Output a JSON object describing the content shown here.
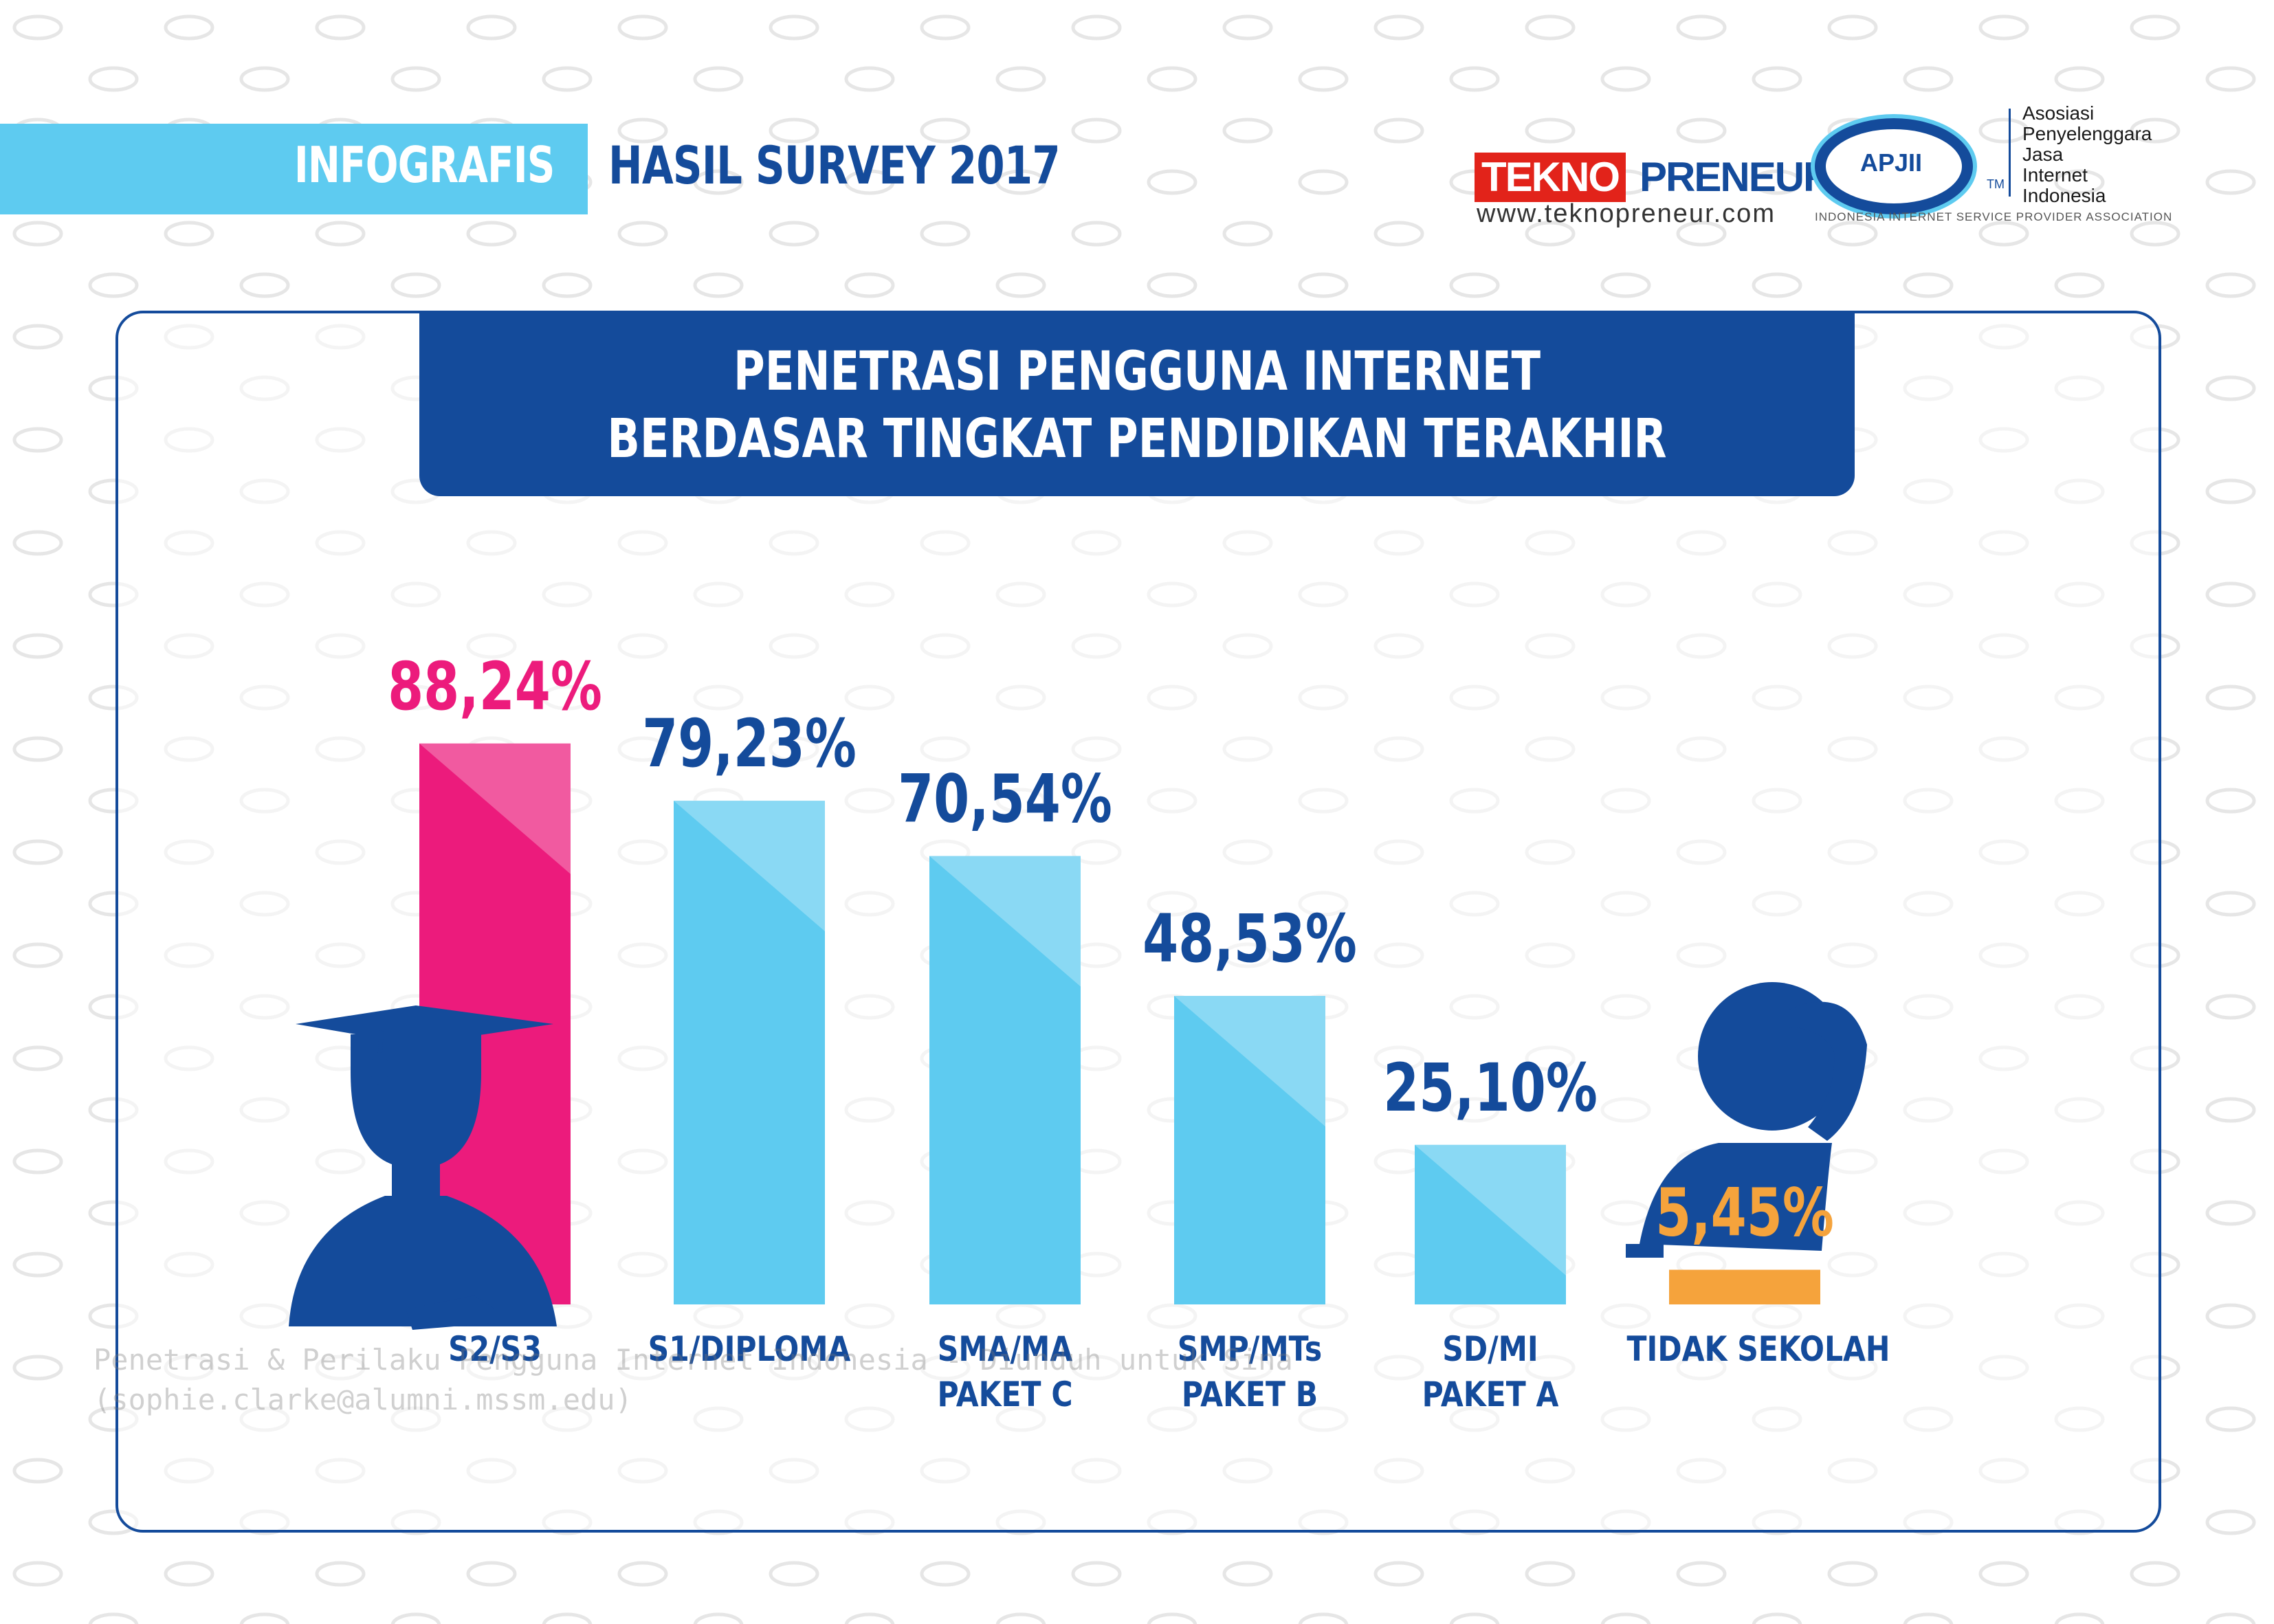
{
  "header": {
    "band_text": "INFOGRAFIS",
    "title": "HASIL SURVEY 2017"
  },
  "logos": {
    "teknopreneur_box": "TEKNO",
    "teknopreneur_rest": "PRENEUR",
    "teknopreneur_url": "www.teknopreneur.com",
    "apjii": "APJII",
    "apjii_tm": "TM",
    "apjii_full": "Asosiasi\nPenyelenggara\nJasa\nInternet\nIndonesia",
    "apjii_assoc": "INDONESIA INTERNET SERVICE PROVIDER ASSOCIATION"
  },
  "colors": {
    "navy": "#144b9b",
    "sky": "#5ecbf0",
    "pink": "#ec1b7c",
    "orange": "#f5a33c"
  },
  "chart_data": {
    "type": "bar",
    "title_line1": "PENETRASI PENGGUNA INTERNET",
    "title_line2": "BERDASAR TINGKAT PENDIDIKAN TERAKHIR",
    "categories": [
      "S2/S3",
      "S1/DIPLOMA",
      "SMA/MA\nPAKET C",
      "SMP/MTs\nPAKET B",
      "SD/MI\nPAKET A",
      "TIDAK SEKOLAH"
    ],
    "values": [
      88.24,
      79.23,
      70.54,
      48.53,
      25.1,
      5.45
    ],
    "value_labels": [
      "88,24%",
      "79,23%",
      "70,54%",
      "48,53%",
      "25,10%",
      "5,45%"
    ],
    "bar_colors": [
      "#ec1b7c",
      "#5ecbf0",
      "#5ecbf0",
      "#5ecbf0",
      "#5ecbf0",
      "#f5a33c"
    ],
    "label_colors": [
      "#ec1b7c",
      "#144b9b",
      "#144b9b",
      "#144b9b",
      "#144b9b",
      "#f5a33c"
    ],
    "ylim": [
      0,
      100
    ],
    "grid": false,
    "legend": "none"
  },
  "watermark": "Penetrasi & Perilaku Pengguna Internet Indonesia - Diunduh untuk Sina\n(sophie.clarke@alumni.mssm.edu)"
}
